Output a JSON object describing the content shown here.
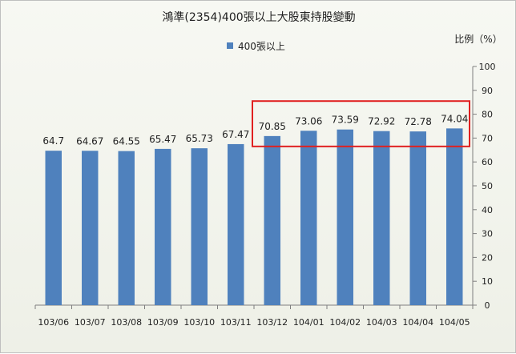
{
  "chart_data": {
    "type": "bar",
    "title": "鴻準(2354)400張以上大股東持股變動",
    "ylabel": "比例（%）",
    "xlabel": "",
    "categories": [
      "103/06",
      "103/07",
      "103/08",
      "103/09",
      "103/10",
      "103/11",
      "103/12",
      "104/01",
      "104/02",
      "104/03",
      "104/04",
      "104/05"
    ],
    "series": [
      {
        "name": "400張以上",
        "values": [
          64.7,
          64.67,
          64.55,
          65.47,
          65.73,
          67.47,
          70.85,
          73.06,
          73.59,
          72.92,
          72.78,
          74.04
        ],
        "labels": [
          "64.7",
          "64.67",
          "64.55",
          "65.47",
          "65.73",
          "67.47",
          "70.85",
          "73.06",
          "73.59",
          "72.92",
          "72.78",
          "74.04"
        ]
      }
    ],
    "ylim": [
      0,
      100
    ],
    "yticks": [
      0,
      10,
      20,
      30,
      40,
      50,
      60,
      70,
      80,
      90,
      100
    ],
    "legend_position": "top",
    "y_axis_position": "right",
    "grid": false,
    "highlight": {
      "from_category": "103/12",
      "to_category": "104/05",
      "color": "#e02020"
    },
    "colors": {
      "bar": "#4f81bd",
      "axis": "#7f7f7f"
    }
  }
}
